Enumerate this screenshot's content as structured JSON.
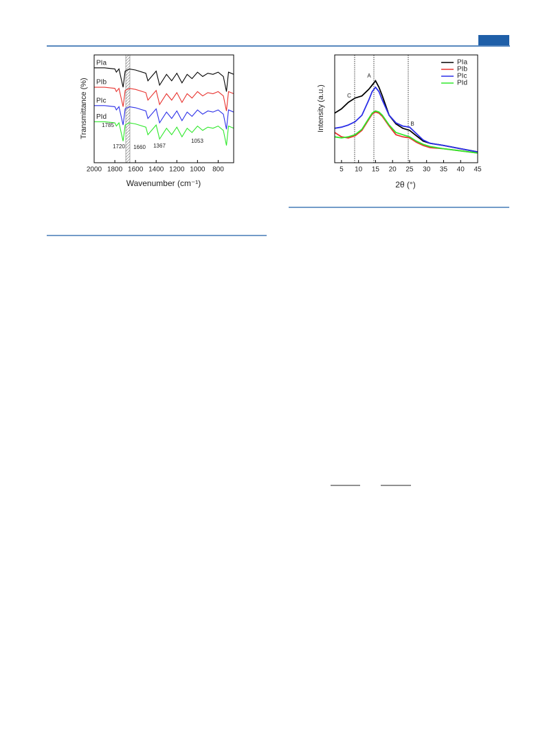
{
  "chart_data": [
    {
      "type": "line",
      "x_label": "Wavenumber (cm⁻¹)",
      "y_label": "Transmittance (%)",
      "x": [
        2000,
        1900,
        1800,
        1785,
        1760,
        1720,
        1700,
        1660,
        1600,
        1500,
        1480,
        1400,
        1367,
        1300,
        1250,
        1200,
        1150,
        1100,
        1053,
        1000,
        950,
        900,
        850,
        800,
        750,
        720,
        700,
        650
      ],
      "xlim": [
        2000,
        650
      ],
      "xticks": [
        2000,
        1800,
        1600,
        1400,
        1200,
        1000,
        800
      ],
      "ylim": [
        0,
        100
      ],
      "annotations": [
        "1785",
        "1720",
        "1660",
        "1367",
        "1053"
      ],
      "series": [
        {
          "name": "PIa",
          "color": "#000000",
          "values": [
            88,
            88,
            87,
            84,
            87,
            70,
            85,
            87,
            86,
            83,
            76,
            85,
            72,
            82,
            76,
            83,
            74,
            82,
            78,
            84,
            80,
            83,
            82,
            84,
            80,
            66,
            84,
            82
          ]
        },
        {
          "name": "PIb",
          "color": "#e8322e",
          "values": [
            70,
            70,
            69,
            66,
            69,
            52,
            67,
            69,
            68,
            65,
            58,
            67,
            54,
            64,
            58,
            65,
            56,
            64,
            60,
            66,
            62,
            65,
            64,
            66,
            62,
            48,
            66,
            64
          ]
        },
        {
          "name": "PIc",
          "color": "#2a2ee8",
          "values": [
            53,
            53,
            52,
            49,
            52,
            35,
            50,
            52,
            51,
            48,
            41,
            50,
            37,
            47,
            41,
            48,
            39,
            47,
            43,
            49,
            45,
            48,
            47,
            49,
            45,
            31,
            49,
            47
          ]
        },
        {
          "name": "PId",
          "color": "#2ee82a",
          "values": [
            38,
            38,
            37,
            34,
            37,
            20,
            35,
            37,
            36,
            33,
            26,
            35,
            22,
            32,
            26,
            33,
            24,
            32,
            28,
            34,
            30,
            33,
            32,
            34,
            30,
            16,
            34,
            32
          ]
        }
      ]
    },
    {
      "type": "line",
      "x_label": "2θ (°)",
      "y_label": "Intensity (a.u.)",
      "x": [
        3,
        5,
        7,
        9,
        11,
        13,
        14,
        15,
        16,
        17,
        19,
        21,
        23,
        25,
        27,
        29,
        31,
        35,
        40,
        45
      ],
      "xlim": [
        3,
        45
      ],
      "xticks": [
        5,
        10,
        15,
        20,
        25,
        30,
        35,
        40,
        45
      ],
      "ylim": [
        0,
        100
      ],
      "annotations": [
        "C",
        "A",
        "B"
      ],
      "legend": "upper right",
      "series": [
        {
          "name": "PIa",
          "color": "#000000",
          "values": [
            46,
            50,
            56,
            60,
            62,
            68,
            72,
            76,
            70,
            62,
            44,
            36,
            32,
            30,
            25,
            20,
            18,
            16,
            13,
            10
          ]
        },
        {
          "name": "PIb",
          "color": "#e8322e",
          "values": [
            28,
            24,
            23,
            25,
            30,
            40,
            45,
            47,
            46,
            43,
            34,
            26,
            24,
            23,
            19,
            16,
            14,
            13,
            11,
            9
          ]
        },
        {
          "name": "PIc",
          "color": "#2a2ee8",
          "values": [
            32,
            33,
            35,
            38,
            44,
            58,
            66,
            70,
            66,
            58,
            44,
            37,
            34,
            33,
            27,
            21,
            18,
            16,
            13,
            10
          ]
        },
        {
          "name": "PId",
          "color": "#2ee82a",
          "values": [
            24,
            23,
            24,
            26,
            31,
            41,
            46,
            48,
            47,
            44,
            35,
            28,
            26,
            24,
            20,
            17,
            15,
            13,
            11,
            9
          ]
        }
      ]
    }
  ]
}
